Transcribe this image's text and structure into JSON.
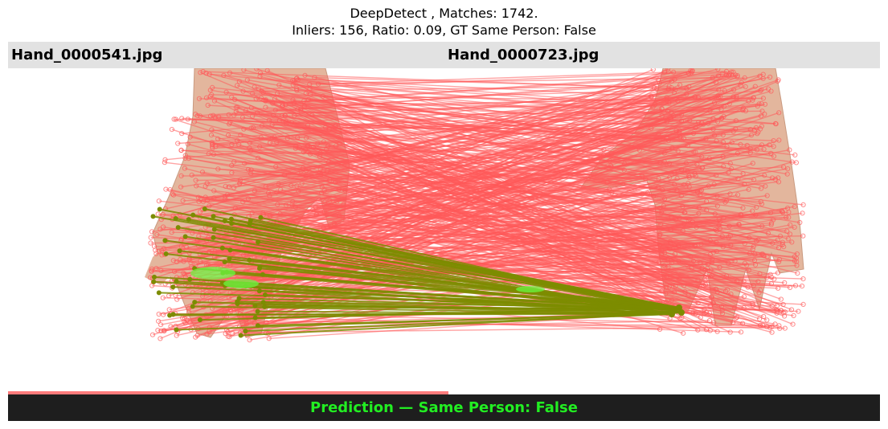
{
  "title": {
    "line1": "DeepDetect , Matches: 1742.",
    "line2": "Inliers: 156, Ratio: 0.09, GT Same Person: False"
  },
  "images": {
    "left_name": "Hand_0000541.jpg",
    "right_name": "Hand_0000723.jpg"
  },
  "prediction": {
    "label": "Prediction — Same Person: False",
    "color": "#22ee22"
  },
  "colors": {
    "outlier_line": "#ff5a5a",
    "inlier_line": "#7c8c00",
    "skin": "#e3b69d",
    "header_bg": "#e2e2e2",
    "footer_bg": "#1e1e1e"
  },
  "stats": {
    "matches": 1742,
    "inliers": 156,
    "ratio": 0.09
  }
}
